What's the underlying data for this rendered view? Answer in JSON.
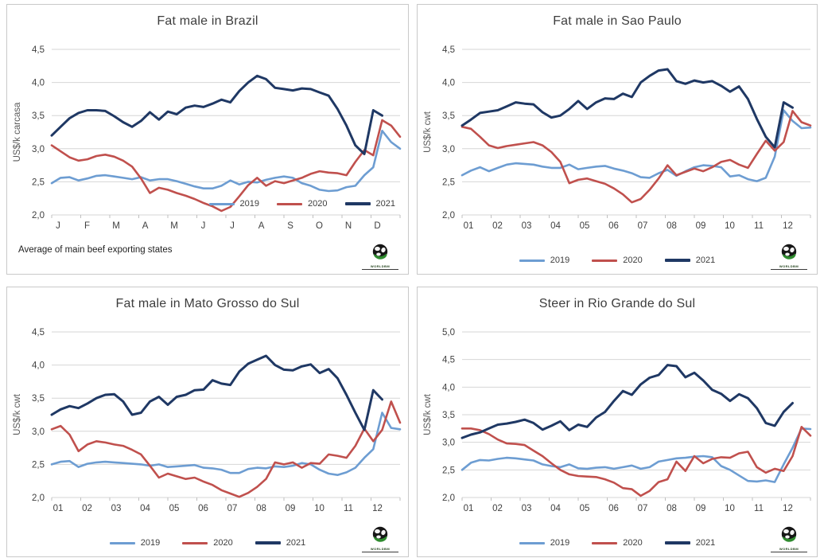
{
  "logo": {
    "text": "WORLDBM"
  },
  "colors": {
    "series_2019": "#6d9dd2",
    "series_2020": "#c0504d",
    "series_2021": "#1f3864",
    "gridline": "#d6d6d6",
    "axis": "#bfbfbf",
    "tick_label": "#404040",
    "axis_title": "#595959",
    "title": "#3d3d3d"
  },
  "chart_data": [
    {
      "type": "line",
      "title": "Fat male in Brazil",
      "ylabel": "US$/k carcasa",
      "footnote": "Average of main beef exporting states",
      "ylim": [
        2.0,
        4.5
      ],
      "y_ticks": [
        "2,0",
        "2,5",
        "3,0",
        "3,5",
        "4,0",
        "4,5"
      ],
      "x_labels": [
        "J",
        "F",
        "M",
        "A",
        "M",
        "J",
        "J",
        "A",
        "S",
        "O",
        "N",
        "D"
      ],
      "grid": true,
      "legend_position": "inside-bottom-right",
      "n_points": 40,
      "series": [
        {
          "name": "2019",
          "color": "#6d9dd2",
          "values": [
            2.48,
            2.56,
            2.57,
            2.52,
            2.55,
            2.59,
            2.6,
            2.58,
            2.56,
            2.54,
            2.57,
            2.52,
            2.54,
            2.54,
            2.51,
            2.47,
            2.43,
            2.4,
            2.4,
            2.44,
            2.52,
            2.46,
            2.5,
            2.49,
            2.53,
            2.56,
            2.58,
            2.56,
            2.48,
            2.44,
            2.38,
            2.36,
            2.37,
            2.42,
            2.44,
            2.6,
            2.72,
            3.27,
            3.1,
            3.0
          ]
        },
        {
          "name": "2020",
          "color": "#c0504d",
          "values": [
            3.05,
            2.96,
            2.87,
            2.82,
            2.84,
            2.89,
            2.91,
            2.88,
            2.82,
            2.73,
            2.55,
            2.33,
            2.41,
            2.38,
            2.33,
            2.29,
            2.24,
            2.18,
            2.13,
            2.06,
            2.12,
            2.28,
            2.45,
            2.56,
            2.44,
            2.51,
            2.48,
            2.52,
            2.56,
            2.62,
            2.66,
            2.64,
            2.63,
            2.6,
            2.8,
            2.98,
            2.9,
            3.43,
            3.35,
            3.18
          ]
        },
        {
          "name": "2021",
          "color": "#1f3864",
          "values": [
            3.2,
            3.33,
            3.46,
            3.54,
            3.58,
            3.58,
            3.57,
            3.49,
            3.4,
            3.33,
            3.42,
            3.55,
            3.44,
            3.56,
            3.52,
            3.62,
            3.65,
            3.63,
            3.68,
            3.74,
            3.7,
            3.87,
            4.0,
            4.1,
            4.05,
            3.92,
            3.9,
            3.88,
            3.91,
            3.9,
            3.85,
            3.8,
            3.6,
            3.35,
            3.05,
            2.92,
            3.58,
            3.5
          ]
        }
      ]
    },
    {
      "type": "line",
      "title": "Fat male in Sao Paulo",
      "ylabel": "US$/k cwt",
      "footnote": "",
      "ylim": [
        2.0,
        4.5
      ],
      "y_ticks": [
        "2,0",
        "2,5",
        "3,0",
        "3,5",
        "4,0",
        "4,5"
      ],
      "x_labels": [
        "01",
        "02",
        "03",
        "04",
        "05",
        "06",
        "07",
        "08",
        "09",
        "10",
        "11",
        "12"
      ],
      "grid": true,
      "legend_position": "below-center",
      "n_points": 40,
      "series": [
        {
          "name": "2019",
          "color": "#6d9dd2",
          "values": [
            2.6,
            2.67,
            2.72,
            2.66,
            2.71,
            2.76,
            2.78,
            2.77,
            2.76,
            2.73,
            2.71,
            2.71,
            2.76,
            2.69,
            2.71,
            2.73,
            2.74,
            2.7,
            2.67,
            2.63,
            2.57,
            2.56,
            2.63,
            2.68,
            2.59,
            2.66,
            2.72,
            2.75,
            2.74,
            2.72,
            2.58,
            2.6,
            2.54,
            2.51,
            2.56,
            2.88,
            3.58,
            3.42,
            3.31,
            3.32
          ]
        },
        {
          "name": "2020",
          "color": "#c0504d",
          "values": [
            3.33,
            3.3,
            3.18,
            3.05,
            3.01,
            3.04,
            3.06,
            3.08,
            3.1,
            3.05,
            2.95,
            2.8,
            2.48,
            2.53,
            2.55,
            2.51,
            2.47,
            2.4,
            2.31,
            2.19,
            2.24,
            2.38,
            2.55,
            2.75,
            2.6,
            2.65,
            2.7,
            2.66,
            2.72,
            2.8,
            2.83,
            2.76,
            2.71,
            2.92,
            3.12,
            2.97,
            3.1,
            3.57,
            3.4,
            3.35
          ]
        },
        {
          "name": "2021",
          "color": "#1f3864",
          "values": [
            3.35,
            3.44,
            3.54,
            3.56,
            3.58,
            3.64,
            3.7,
            3.68,
            3.67,
            3.55,
            3.47,
            3.5,
            3.6,
            3.72,
            3.6,
            3.7,
            3.76,
            3.75,
            3.83,
            3.78,
            4.0,
            4.1,
            4.18,
            4.2,
            4.02,
            3.98,
            4.03,
            4.0,
            4.02,
            3.95,
            3.86,
            3.94,
            3.75,
            3.45,
            3.18,
            3.02,
            3.7,
            3.62
          ]
        }
      ]
    },
    {
      "type": "line",
      "title": "Fat male in Mato Grosso do Sul",
      "ylabel": "US$/k cwt",
      "footnote": "",
      "ylim": [
        2.0,
        4.5
      ],
      "y_ticks": [
        "2,0",
        "2,5",
        "3,0",
        "3,5",
        "4,0",
        "4,5"
      ],
      "x_labels": [
        "01",
        "02",
        "03",
        "04",
        "05",
        "06",
        "07",
        "08",
        "09",
        "10",
        "11",
        "12"
      ],
      "grid": true,
      "legend_position": "below-center",
      "n_points": 40,
      "series": [
        {
          "name": "2019",
          "color": "#6d9dd2",
          "values": [
            2.5,
            2.54,
            2.55,
            2.46,
            2.51,
            2.53,
            2.54,
            2.53,
            2.52,
            2.51,
            2.5,
            2.48,
            2.5,
            2.46,
            2.47,
            2.48,
            2.49,
            2.45,
            2.44,
            2.42,
            2.37,
            2.37,
            2.43,
            2.45,
            2.44,
            2.47,
            2.46,
            2.48,
            2.52,
            2.5,
            2.42,
            2.36,
            2.34,
            2.38,
            2.45,
            2.6,
            2.73,
            3.28,
            3.05,
            3.03
          ]
        },
        {
          "name": "2020",
          "color": "#c0504d",
          "values": [
            3.03,
            3.08,
            2.95,
            2.7,
            2.8,
            2.85,
            2.83,
            2.8,
            2.78,
            2.72,
            2.65,
            2.48,
            2.3,
            2.36,
            2.32,
            2.28,
            2.3,
            2.24,
            2.19,
            2.11,
            2.06,
            2.01,
            2.07,
            2.16,
            2.28,
            2.53,
            2.5,
            2.53,
            2.45,
            2.52,
            2.51,
            2.65,
            2.63,
            2.6,
            2.78,
            3.04,
            2.85,
            3.02,
            3.45,
            3.13
          ]
        },
        {
          "name": "2021",
          "color": "#1f3864",
          "values": [
            3.25,
            3.33,
            3.38,
            3.35,
            3.42,
            3.5,
            3.55,
            3.56,
            3.45,
            3.25,
            3.28,
            3.45,
            3.52,
            3.4,
            3.52,
            3.55,
            3.62,
            3.63,
            3.77,
            3.72,
            3.7,
            3.9,
            4.02,
            4.08,
            4.14,
            4.0,
            3.93,
            3.92,
            3.98,
            4.01,
            3.88,
            3.94,
            3.8,
            3.55,
            3.28,
            3.02,
            3.62,
            3.48
          ]
        }
      ]
    },
    {
      "type": "line",
      "title": "Steer in Rio Grande do Sul",
      "ylabel": "US$/k cwt",
      "footnote": "",
      "ylim": [
        2.0,
        5.0
      ],
      "y_ticks": [
        "2,0",
        "2,5",
        "3,0",
        "3,5",
        "4,0",
        "4,5",
        "5,0"
      ],
      "x_labels": [
        "01",
        "02",
        "03",
        "04",
        "05",
        "06",
        "07",
        "08",
        "09",
        "10",
        "11",
        "12"
      ],
      "grid": true,
      "legend_position": "below-center",
      "n_points": 40,
      "series": [
        {
          "name": "2019",
          "color": "#6d9dd2",
          "values": [
            2.5,
            2.63,
            2.68,
            2.67,
            2.7,
            2.72,
            2.71,
            2.69,
            2.67,
            2.6,
            2.57,
            2.55,
            2.6,
            2.53,
            2.52,
            2.54,
            2.55,
            2.52,
            2.55,
            2.58,
            2.52,
            2.55,
            2.65,
            2.68,
            2.71,
            2.72,
            2.74,
            2.75,
            2.73,
            2.57,
            2.5,
            2.4,
            2.3,
            2.29,
            2.31,
            2.28,
            2.6,
            2.9,
            3.25,
            3.24
          ]
        },
        {
          "name": "2020",
          "color": "#c0504d",
          "values": [
            3.25,
            3.25,
            3.22,
            3.15,
            3.05,
            2.98,
            2.97,
            2.95,
            2.85,
            2.75,
            2.62,
            2.5,
            2.42,
            2.39,
            2.38,
            2.37,
            2.33,
            2.27,
            2.17,
            2.15,
            2.03,
            2.12,
            2.28,
            2.33,
            2.65,
            2.48,
            2.75,
            2.62,
            2.7,
            2.73,
            2.72,
            2.8,
            2.83,
            2.55,
            2.45,
            2.52,
            2.48,
            2.75,
            3.28,
            3.12
          ]
        },
        {
          "name": "2021",
          "color": "#1f3864",
          "values": [
            3.08,
            3.14,
            3.18,
            3.25,
            3.32,
            3.34,
            3.37,
            3.41,
            3.35,
            3.23,
            3.3,
            3.38,
            3.22,
            3.32,
            3.28,
            3.45,
            3.55,
            3.75,
            3.93,
            3.86,
            4.05,
            4.17,
            4.22,
            4.4,
            4.38,
            4.18,
            4.26,
            4.12,
            3.95,
            3.88,
            3.75,
            3.87,
            3.8,
            3.62,
            3.35,
            3.3,
            3.55,
            3.71
          ]
        }
      ]
    }
  ]
}
